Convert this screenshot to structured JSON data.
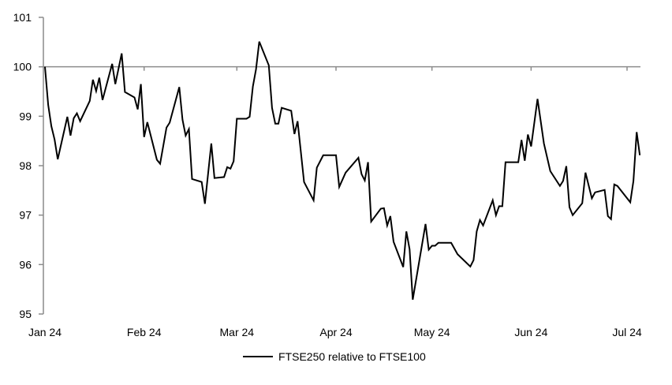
{
  "chart_data": {
    "type": "line",
    "title": "",
    "xlabel": "",
    "ylabel": "",
    "ylim": [
      95,
      101
    ],
    "xlim": [
      "2024-01-01",
      "2024-07-06"
    ],
    "yticks": [
      "95",
      "96",
      "97",
      "98",
      "99",
      "100",
      "101"
    ],
    "xticks": [
      {
        "date": "2024-01-01",
        "label": "Jan 24"
      },
      {
        "date": "2024-02-01",
        "label": "Feb 24"
      },
      {
        "date": "2024-03-01",
        "label": "Mar 24"
      },
      {
        "date": "2024-04-01",
        "label": "Apr 24"
      },
      {
        "date": "2024-05-01",
        "label": "May 24"
      },
      {
        "date": "2024-06-01",
        "label": "Jun 24"
      },
      {
        "date": "2024-07-01",
        "label": "Jul 24"
      }
    ],
    "reference_line": 100,
    "grid": false,
    "legend_position": "bottom",
    "colors": {
      "series": "#000000",
      "axis": "#8c8c8c"
    },
    "series": [
      {
        "name": "FTSE250 relative to FTSE100",
        "points": [
          [
            "2024-01-01",
            100.0
          ],
          [
            "2024-01-02",
            99.23
          ],
          [
            "2024-01-03",
            98.8
          ],
          [
            "2024-01-04",
            98.53
          ],
          [
            "2024-01-05",
            98.13
          ],
          [
            "2024-01-08",
            98.99
          ],
          [
            "2024-01-09",
            98.61
          ],
          [
            "2024-01-10",
            98.96
          ],
          [
            "2024-01-11",
            99.06
          ],
          [
            "2024-01-12",
            98.9
          ],
          [
            "2024-01-15",
            99.31
          ],
          [
            "2024-01-16",
            99.74
          ],
          [
            "2024-01-17",
            99.51
          ],
          [
            "2024-01-18",
            99.78
          ],
          [
            "2024-01-19",
            99.33
          ],
          [
            "2024-01-22",
            100.06
          ],
          [
            "2024-01-23",
            99.65
          ],
          [
            "2024-01-25",
            100.27
          ],
          [
            "2024-01-26",
            99.49
          ],
          [
            "2024-01-29",
            99.38
          ],
          [
            "2024-01-30",
            99.14
          ],
          [
            "2024-01-31",
            99.65
          ],
          [
            "2024-02-01",
            98.58
          ],
          [
            "2024-02-02",
            98.88
          ],
          [
            "2024-02-05",
            98.12
          ],
          [
            "2024-02-06",
            98.04
          ],
          [
            "2024-02-08",
            98.77
          ],
          [
            "2024-02-09",
            98.87
          ],
          [
            "2024-02-12",
            99.59
          ],
          [
            "2024-02-13",
            98.93
          ],
          [
            "2024-02-14",
            98.61
          ],
          [
            "2024-02-15",
            98.74
          ],
          [
            "2024-02-16",
            97.73
          ],
          [
            "2024-02-19",
            97.67
          ],
          [
            "2024-02-20",
            97.23
          ],
          [
            "2024-02-22",
            98.45
          ],
          [
            "2024-02-23",
            97.75
          ],
          [
            "2024-02-26",
            97.77
          ],
          [
            "2024-02-27",
            97.97
          ],
          [
            "2024-02-28",
            97.94
          ],
          [
            "2024-02-29",
            98.09
          ],
          [
            "2024-03-01",
            98.95
          ],
          [
            "2024-03-04",
            98.95
          ],
          [
            "2024-03-05",
            98.99
          ],
          [
            "2024-03-06",
            99.6
          ],
          [
            "2024-03-07",
            99.95
          ],
          [
            "2024-03-08",
            100.51
          ],
          [
            "2024-03-11",
            100.03
          ],
          [
            "2024-03-12",
            99.17
          ],
          [
            "2024-03-13",
            98.85
          ],
          [
            "2024-03-14",
            98.85
          ],
          [
            "2024-03-15",
            99.17
          ],
          [
            "2024-03-18",
            99.11
          ],
          [
            "2024-03-19",
            98.64
          ],
          [
            "2024-03-20",
            98.9
          ],
          [
            "2024-03-22",
            97.67
          ],
          [
            "2024-03-25",
            97.3
          ],
          [
            "2024-03-26",
            97.96
          ],
          [
            "2024-03-28",
            98.21
          ],
          [
            "2024-04-01",
            98.21
          ],
          [
            "2024-04-02",
            97.57
          ],
          [
            "2024-04-04",
            97.86
          ],
          [
            "2024-04-08",
            98.16
          ],
          [
            "2024-04-09",
            97.83
          ],
          [
            "2024-04-10",
            97.7
          ],
          [
            "2024-04-11",
            98.07
          ],
          [
            "2024-04-12",
            96.87
          ],
          [
            "2024-04-15",
            97.13
          ],
          [
            "2024-04-16",
            97.14
          ],
          [
            "2024-04-17",
            96.79
          ],
          [
            "2024-04-18",
            96.98
          ],
          [
            "2024-04-19",
            96.46
          ],
          [
            "2024-04-22",
            95.95
          ],
          [
            "2024-04-23",
            96.67
          ],
          [
            "2024-04-24",
            96.31
          ],
          [
            "2024-04-25",
            95.29
          ],
          [
            "2024-04-29",
            96.82
          ],
          [
            "2024-04-30",
            96.3
          ],
          [
            "2024-05-01",
            96.38
          ],
          [
            "2024-05-02",
            96.38
          ],
          [
            "2024-05-03",
            96.44
          ],
          [
            "2024-05-07",
            96.44
          ],
          [
            "2024-05-09",
            96.21
          ],
          [
            "2024-05-13",
            95.96
          ],
          [
            "2024-05-14",
            96.09
          ],
          [
            "2024-05-15",
            96.67
          ],
          [
            "2024-05-16",
            96.9
          ],
          [
            "2024-05-17",
            96.79
          ],
          [
            "2024-05-20",
            97.3
          ],
          [
            "2024-05-21",
            97.0
          ],
          [
            "2024-05-22",
            97.18
          ],
          [
            "2024-05-23",
            97.18
          ],
          [
            "2024-05-24",
            98.07
          ],
          [
            "2024-05-28",
            98.07
          ],
          [
            "2024-05-29",
            98.52
          ],
          [
            "2024-05-30",
            98.1
          ],
          [
            "2024-05-31",
            98.63
          ],
          [
            "2024-06-01",
            98.39
          ],
          [
            "2024-06-03",
            99.35
          ],
          [
            "2024-06-05",
            98.45
          ],
          [
            "2024-06-07",
            97.89
          ],
          [
            "2024-06-10",
            97.59
          ],
          [
            "2024-06-11",
            97.69
          ],
          [
            "2024-06-12",
            97.99
          ],
          [
            "2024-06-13",
            97.16
          ],
          [
            "2024-06-14",
            97.0
          ],
          [
            "2024-06-17",
            97.24
          ],
          [
            "2024-06-18",
            97.86
          ],
          [
            "2024-06-20",
            97.34
          ],
          [
            "2024-06-21",
            97.46
          ],
          [
            "2024-06-24",
            97.51
          ],
          [
            "2024-06-25",
            96.98
          ],
          [
            "2024-06-26",
            96.92
          ],
          [
            "2024-06-27",
            97.62
          ],
          [
            "2024-06-28",
            97.59
          ],
          [
            "2024-07-02",
            97.26
          ],
          [
            "2024-07-03",
            97.69
          ],
          [
            "2024-07-04",
            98.68
          ],
          [
            "2024-07-05",
            98.21
          ]
        ]
      }
    ]
  }
}
